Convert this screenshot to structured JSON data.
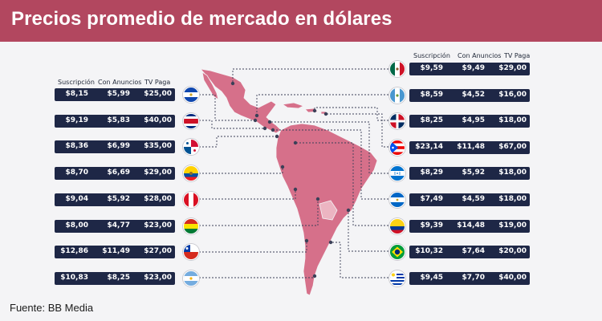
{
  "header": {
    "title": "Precios promedio de mercado en dólares"
  },
  "source": "Fuente: BB Media",
  "columns": {
    "subscription": "Suscripción",
    "ads": "Con Anuncios",
    "pay_tv": "TV Paga"
  },
  "colors": {
    "header": "#b2475f",
    "row": "#1e2746",
    "map": "#d6708a",
    "map_light": "#ecb5c2"
  },
  "chart_data": {
    "type": "table",
    "title": "Precios promedio de mercado en dólares",
    "left": [
      {
        "flag": "el-salvador-flag",
        "subscription": "$8,15",
        "ads": "$5,99",
        "pay_tv": "$25,00"
      },
      {
        "flag": "costa-rica-flag",
        "subscription": "$9,19",
        "ads": "$5,83",
        "pay_tv": "$40,00"
      },
      {
        "flag": "panama-flag",
        "subscription": "$8,36",
        "ads": "$6,99",
        "pay_tv": "$35,00"
      },
      {
        "flag": "ecuador-flag",
        "subscription": "$8,70",
        "ads": "$6,69",
        "pay_tv": "$29,00"
      },
      {
        "flag": "peru-flag",
        "subscription": "$9,04",
        "ads": "$5,92",
        "pay_tv": "$28,00"
      },
      {
        "flag": "bolivia-flag",
        "subscription": "$8,00",
        "ads": "$4,77",
        "pay_tv": "$23,00"
      },
      {
        "flag": "chile-flag",
        "subscription": "$12,86",
        "ads": "$11,49",
        "pay_tv": "$27,00"
      },
      {
        "flag": "argentina-flag",
        "subscription": "$10,83",
        "ads": "$8,25",
        "pay_tv": "$23,00"
      }
    ],
    "right": [
      {
        "flag": "mexico-flag",
        "subscription": "$9,59",
        "ads": "$9,49",
        "pay_tv": "$29,00"
      },
      {
        "flag": "guatemala-flag",
        "subscription": "$8,59",
        "ads": "$4,52",
        "pay_tv": "$16,00"
      },
      {
        "flag": "dominican-republic-flag",
        "subscription": "$8,25",
        "ads": "$4,95",
        "pay_tv": "$18,00"
      },
      {
        "flag": "puerto-rico-flag",
        "subscription": "$23,14",
        "ads": "$11,48",
        "pay_tv": "$67,00"
      },
      {
        "flag": "honduras-flag",
        "subscription": "$8,29",
        "ads": "$5,92",
        "pay_tv": "$18,00"
      },
      {
        "flag": "nicaragua-flag",
        "subscription": "$7,49",
        "ads": "$4,59",
        "pay_tv": "$18,00"
      },
      {
        "flag": "colombia-flag",
        "subscription": "$9,39",
        "ads": "$14,48",
        "pay_tv": "$19,00"
      },
      {
        "flag": "brazil-flag",
        "subscription": "$10,32",
        "ads": "$7,64",
        "pay_tv": "$20,00"
      },
      {
        "flag": "uruguay-flag",
        "subscription": "$9,45",
        "ads": "$7,70",
        "pay_tv": "$40,00"
      }
    ]
  }
}
